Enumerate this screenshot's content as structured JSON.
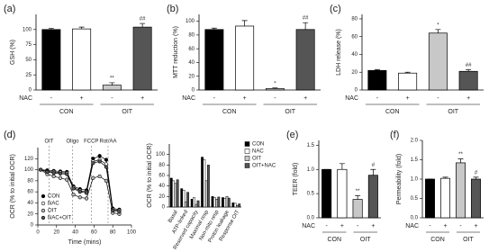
{
  "chart_data": [
    {
      "type": "bar",
      "label": "(a)",
      "ylabel": "GSH (%)",
      "ylim": [
        0,
        125
      ],
      "yticks": [
        0,
        25,
        50,
        75,
        100
      ],
      "row_label": "NAC",
      "categories": [
        "-",
        "+",
        "-",
        "+"
      ],
      "groups": [
        "CON",
        "OIT"
      ],
      "values": [
        100,
        101,
        8,
        104
      ],
      "errors": [
        2,
        3,
        4,
        6
      ],
      "colors": [
        "#000000",
        "#ffffff",
        "#c8c8c8",
        "#555555"
      ],
      "markers": [
        null,
        null,
        "**",
        "##"
      ]
    },
    {
      "type": "bar",
      "label": "(b)",
      "ylabel": "MTT reduction (%)",
      "ylim": [
        0,
        110
      ],
      "yticks": [
        0,
        20,
        40,
        60,
        80,
        100
      ],
      "row_label": "NAC",
      "categories": [
        "-",
        "+",
        "-",
        "+"
      ],
      "groups": [
        "CON",
        "OIT"
      ],
      "values": [
        88,
        93,
        2,
        88
      ],
      "errors": [
        2,
        8,
        1,
        10
      ],
      "colors": [
        "#000000",
        "#ffffff",
        "#c8c8c8",
        "#555555"
      ],
      "markers": [
        null,
        null,
        "*",
        "##"
      ]
    },
    {
      "type": "bar",
      "label": "(c)",
      "ylabel": "LDH release (%)",
      "ylim": [
        0,
        85
      ],
      "yticks": [
        0,
        20,
        40,
        60,
        80
      ],
      "row_label": "NAC",
      "categories": [
        "-",
        "+",
        "-",
        "+"
      ],
      "groups": [
        "CON",
        "OIT"
      ],
      "values": [
        22,
        19,
        64,
        21
      ],
      "errors": [
        1,
        1,
        4,
        2
      ],
      "colors": [
        "#000000",
        "#ffffff",
        "#c8c8c8",
        "#555555"
      ],
      "markers": [
        null,
        null,
        "*",
        "##"
      ]
    },
    {
      "type": "line",
      "label": "(d)",
      "ylabel": "OCR (% to initial OCR)",
      "xlabel": "Time (mins)",
      "xlim": [
        0,
        100
      ],
      "xticks": [
        0,
        20,
        40,
        60,
        80,
        100
      ],
      "ylim": [
        0,
        140
      ],
      "yticks": [
        0,
        20,
        40,
        60,
        80,
        100,
        120
      ],
      "injections": [
        {
          "label": "OIT",
          "x": 12
        },
        {
          "label": "Oligo",
          "x": 37
        },
        {
          "label": "FCCP",
          "x": 57
        },
        {
          "label": "Rot/AA",
          "x": 75
        }
      ],
      "x": [
        3,
        10,
        17,
        24,
        31,
        38,
        45,
        52,
        59,
        66,
        73,
        80,
        87
      ],
      "series": [
        {
          "name": "CON",
          "color": "#000000",
          "values": [
            100,
            99,
            98,
            97,
            96,
            70,
            65,
            63,
            120,
            125,
            118,
            30,
            28
          ]
        },
        {
          "name": "NAC",
          "color": "#ffffff",
          "values": [
            100,
            97,
            96,
            95,
            94,
            68,
            62,
            60,
            115,
            118,
            110,
            28,
            26
          ]
        },
        {
          "name": "OIT",
          "color": "#bbbbbb",
          "values": [
            100,
            92,
            88,
            85,
            82,
            55,
            50,
            48,
            85,
            88,
            80,
            22,
            20
          ]
        },
        {
          "name": "NAC+OIT",
          "color": "#555555",
          "values": [
            100,
            96,
            94,
            93,
            92,
            66,
            60,
            58,
            112,
            115,
            105,
            26,
            24
          ]
        }
      ]
    },
    {
      "type": "grouped_bar",
      "ylabel": "OCR (% to initial OCR)",
      "ylim": [
        0,
        120
      ],
      "yticks": [
        0,
        20,
        40,
        60,
        80,
        100
      ],
      "categories": [
        "Basal",
        "ATP-linked",
        "Reserved capacity",
        "Maximal resp",
        "Non-mito resp",
        "Proton leakage",
        "Response OIT"
      ],
      "series": [
        {
          "name": "CON",
          "color": "#000000",
          "values": [
            55,
            35,
            15,
            95,
            20,
            18,
            8
          ]
        },
        {
          "name": "NAC",
          "color": "#ffffff",
          "values": [
            50,
            32,
            18,
            90,
            18,
            16,
            7
          ]
        },
        {
          "name": "OIT",
          "color": "#c8c8c8",
          "values": [
            45,
            10,
            5,
            50,
            15,
            20,
            3
          ]
        },
        {
          "name": "OIT+NAC",
          "color": "#555555",
          "values": [
            52,
            28,
            12,
            80,
            19,
            17,
            6
          ]
        }
      ]
    },
    {
      "type": "bar",
      "label": "(e)",
      "ylabel": "TEER (fold)",
      "ylim": [
        0,
        1.6
      ],
      "yticks": [
        {
          "value": 0,
          "label": "0.0"
        },
        0.5,
        {
          "value": 1,
          "label": "1.0"
        },
        1.5
      ],
      "row_label": "NAC",
      "categories": [
        "-",
        "+",
        "-",
        "+"
      ],
      "groups": [
        "CON",
        "OIT"
      ],
      "values": [
        1,
        1,
        0.38,
        0.88
      ],
      "errors": [
        0,
        0.12,
        0.08,
        0.12
      ],
      "colors": [
        "#000000",
        "#ffffff",
        "#c8c8c8",
        "#555555"
      ],
      "markers": [
        null,
        null,
        "**",
        "#"
      ]
    },
    {
      "type": "bar",
      "label": "(f)",
      "ylabel": "Permeability (fold)",
      "ylim": [
        0,
        2
      ],
      "yticks": [
        {
          "value": 0,
          "label": "0.0"
        },
        0.5,
        {
          "value": 1,
          "label": "1.0"
        },
        1.5,
        {
          "value": 2,
          "label": "2.0"
        }
      ],
      "row_label": "NAC",
      "categories": [
        "-",
        "+",
        "-",
        "+"
      ],
      "groups": [
        "CON",
        "OIT"
      ],
      "values": [
        1,
        1.02,
        1.42,
        1
      ],
      "errors": [
        0,
        0.03,
        0.1,
        0.05
      ],
      "colors": [
        "#000000",
        "#ffffff",
        "#c8c8c8",
        "#555555"
      ],
      "markers": [
        null,
        null,
        "**",
        "#"
      ]
    }
  ]
}
